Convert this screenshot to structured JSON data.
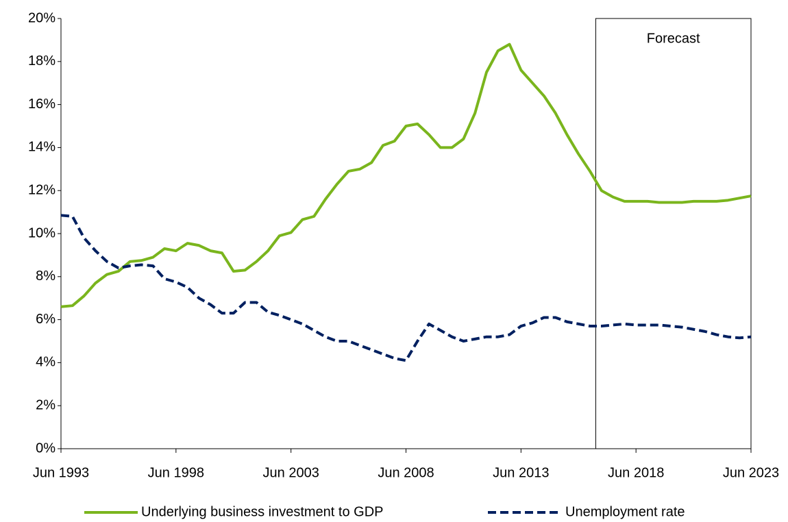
{
  "chart_data": {
    "type": "line",
    "annotation": "Forecast",
    "forecast_start": 2016.75,
    "x": [
      1993.5,
      1994,
      1994.5,
      1995,
      1995.5,
      1996,
      1996.5,
      1997,
      1997.5,
      1998,
      1998.5,
      1999,
      1999.5,
      2000,
      2000.5,
      2001,
      2001.5,
      2002,
      2002.5,
      2003,
      2003.5,
      2004,
      2004.5,
      2005,
      2005.5,
      2006,
      2006.5,
      2007,
      2007.5,
      2008,
      2008.5,
      2009,
      2009.5,
      2010,
      2010.5,
      2011,
      2011.5,
      2012,
      2012.5,
      2013,
      2013.5,
      2014,
      2014.5,
      2015,
      2015.5,
      2016,
      2016.5,
      2017,
      2017.5,
      2018,
      2018.5,
      2019,
      2019.5,
      2020,
      2020.5,
      2021,
      2021.5,
      2022,
      2022.5,
      2023,
      2023.5
    ],
    "series": [
      {
        "name": "Underlying business investment to GDP",
        "color": "#7ab51d",
        "dash": false,
        "values": [
          6.6,
          6.65,
          7.1,
          7.7,
          8.1,
          8.25,
          8.7,
          8.75,
          8.9,
          9.3,
          9.2,
          9.55,
          9.45,
          9.2,
          9.1,
          8.25,
          8.3,
          8.7,
          9.2,
          9.9,
          10.05,
          10.65,
          10.8,
          11.6,
          12.3,
          12.9,
          13.0,
          13.3,
          14.1,
          14.3,
          15.0,
          15.1,
          14.6,
          14.0,
          14.0,
          14.4,
          15.6,
          17.5,
          18.5,
          18.8,
          17.6,
          17.0,
          16.4,
          15.6,
          14.6,
          13.7,
          12.9,
          12.0,
          11.7,
          11.5,
          11.5,
          11.5,
          11.45,
          11.45,
          11.45,
          11.5,
          11.5,
          11.5,
          11.55,
          11.65,
          11.75
        ]
      },
      {
        "name": "Unemployment rate",
        "color": "#002060",
        "dash": true,
        "values": [
          10.85,
          10.8,
          9.8,
          9.2,
          8.7,
          8.4,
          8.5,
          8.55,
          8.5,
          7.9,
          7.75,
          7.5,
          7.0,
          6.7,
          6.3,
          6.3,
          6.8,
          6.8,
          6.35,
          6.2,
          6.0,
          5.8,
          5.5,
          5.2,
          5.0,
          5.0,
          4.8,
          4.6,
          4.4,
          4.2,
          4.1,
          5.0,
          5.8,
          5.5,
          5.2,
          5.0,
          5.1,
          5.2,
          5.2,
          5.3,
          5.7,
          5.85,
          6.1,
          6.1,
          5.9,
          5.8,
          5.7,
          5.7,
          5.75,
          5.8,
          5.75,
          5.75,
          5.75,
          5.7,
          5.65,
          5.55,
          5.45,
          5.3,
          5.2,
          5.15,
          5.2
        ]
      }
    ],
    "xlim": [
      1993.5,
      2023.5
    ],
    "xticks": [
      {
        "value": 1993.5,
        "label": "Jun 1993"
      },
      {
        "value": 1998.5,
        "label": "Jun 1998"
      },
      {
        "value": 2003.5,
        "label": "Jun 2003"
      },
      {
        "value": 2008.5,
        "label": "Jun 2008"
      },
      {
        "value": 2013.5,
        "label": "Jun 2013"
      },
      {
        "value": 2018.5,
        "label": "Jun 2018"
      },
      {
        "value": 2023.5,
        "label": "Jun 2023"
      }
    ],
    "ylim": [
      0,
      20
    ],
    "yticks": [
      {
        "value": 0,
        "label": "0%"
      },
      {
        "value": 2,
        "label": "2%"
      },
      {
        "value": 4,
        "label": "4%"
      },
      {
        "value": 6,
        "label": "6%"
      },
      {
        "value": 8,
        "label": "8%"
      },
      {
        "value": 10,
        "label": "10%"
      },
      {
        "value": 12,
        "label": "12%"
      },
      {
        "value": 14,
        "label": "14%"
      },
      {
        "value": 16,
        "label": "16%"
      },
      {
        "value": 18,
        "label": "18%"
      },
      {
        "value": 20,
        "label": "20%"
      }
    ],
    "grid": false,
    "legend": "bottom"
  }
}
